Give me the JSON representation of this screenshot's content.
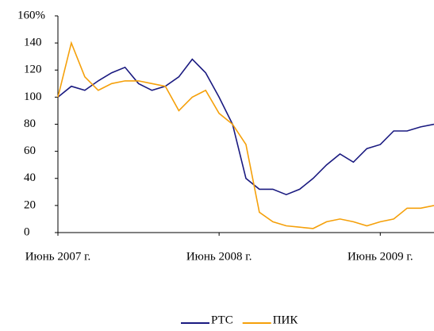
{
  "chart_data": {
    "type": "line",
    "x": [
      "2007-06",
      "2007-07",
      "2007-08",
      "2007-09",
      "2007-10",
      "2007-11",
      "2007-12",
      "2008-01",
      "2008-02",
      "2008-03",
      "2008-04",
      "2008-05",
      "2008-06",
      "2008-07",
      "2008-08",
      "2008-09",
      "2008-10",
      "2008-11",
      "2008-12",
      "2009-01",
      "2009-02",
      "2009-03",
      "2009-04",
      "2009-05",
      "2009-06",
      "2009-07",
      "2009-08",
      "2009-09",
      "2009-10"
    ],
    "series": [
      {
        "name": "РТС",
        "color": "#1a1a80",
        "values": [
          100,
          108,
          105,
          112,
          118,
          122,
          110,
          105,
          108,
          115,
          128,
          118,
          100,
          80,
          40,
          32,
          32,
          28,
          32,
          40,
          50,
          58,
          52,
          62,
          65,
          75,
          75,
          78,
          80
        ]
      },
      {
        "name": "ПИК",
        "color": "#f5a00a",
        "values": [
          100,
          140,
          115,
          105,
          110,
          112,
          112,
          110,
          108,
          90,
          100,
          105,
          88,
          80,
          65,
          15,
          8,
          5,
          4,
          3,
          8,
          10,
          8,
          5,
          8,
          10,
          18,
          18,
          20
        ]
      }
    ],
    "xlim": [
      "2007-06",
      "2009-10"
    ],
    "xticks": [
      {
        "value": "2007-06",
        "label": "Июнь 2007 г."
      },
      {
        "value": "2008-06",
        "label": "Июнь 2008 г."
      },
      {
        "value": "2009-06",
        "label": "Июнь 2009 г."
      }
    ],
    "ylim": [
      0,
      160
    ],
    "yticks": [
      0,
      20,
      40,
      60,
      80,
      100,
      120,
      140,
      {
        "value": 160,
        "label": "160%"
      }
    ],
    "legend": "bottom"
  }
}
